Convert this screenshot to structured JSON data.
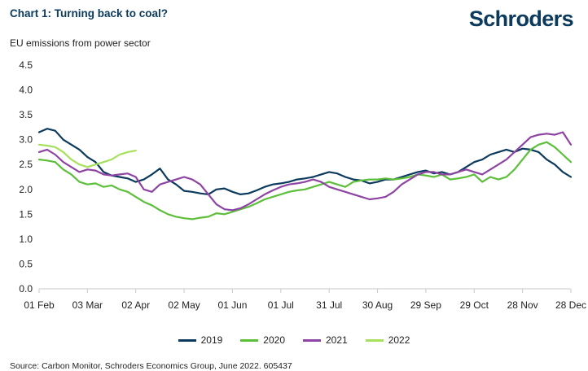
{
  "header": {
    "title": "Chart 1: Turning back to coal?",
    "logo": "Schroders",
    "subtitle": "EU emissions from power sector"
  },
  "source": "Source: Carbon Monitor, Schroders Economics Group, June 2022. 605437",
  "colors": {
    "2019": "#0b3a5d",
    "2020": "#5cbf3a",
    "2021": "#8e44a3",
    "2022": "#a6e05c"
  },
  "chart_data": {
    "type": "line",
    "title": "Chart 1: Turning back to coal?",
    "ylabel": "EU emissions from power sector",
    "xlabel": "",
    "ylim": [
      0,
      4.5
    ],
    "xlim": [
      0,
      330
    ],
    "yticks": [
      {
        "value": 0,
        "label": "0.0"
      },
      {
        "value": 0.5,
        "label": "0.5"
      },
      {
        "value": 1,
        "label": "1.0"
      },
      {
        "value": 1.5,
        "label": "1.5"
      },
      {
        "value": 2,
        "label": "2.0"
      },
      {
        "value": 2.5,
        "label": "2.5"
      },
      {
        "value": 3,
        "label": "3.0"
      },
      {
        "value": 3.5,
        "label": "3.5"
      },
      {
        "value": 4,
        "label": "4.0"
      },
      {
        "value": 4.5,
        "label": "4.5"
      }
    ],
    "xticks": [
      {
        "value": 0,
        "label": "01 Feb"
      },
      {
        "value": 30,
        "label": "03 Mar"
      },
      {
        "value": 60,
        "label": "02 Apr"
      },
      {
        "value": 90,
        "label": "02 May"
      },
      {
        "value": 120,
        "label": "01 Jun"
      },
      {
        "value": 150,
        "label": "01 Jul"
      },
      {
        "value": 180,
        "label": "31 Jul"
      },
      {
        "value": 210,
        "label": "30 Aug"
      },
      {
        "value": 240,
        "label": "29 Sep"
      },
      {
        "value": 270,
        "label": "29 Oct"
      },
      {
        "value": 300,
        "label": "28 Nov"
      },
      {
        "value": 330,
        "label": "28 Dec"
      }
    ],
    "x_unit": "days since 01 Feb",
    "series": [
      {
        "name": "2019",
        "x": [
          0,
          5,
          10,
          15,
          20,
          25,
          30,
          35,
          40,
          45,
          50,
          55,
          60,
          65,
          70,
          75,
          80,
          85,
          90,
          95,
          100,
          105,
          110,
          115,
          120,
          125,
          130,
          135,
          140,
          145,
          150,
          155,
          160,
          165,
          170,
          175,
          180,
          185,
          190,
          195,
          200,
          205,
          210,
          215,
          220,
          225,
          230,
          235,
          240,
          245,
          250,
          255,
          260,
          265,
          270,
          275,
          280,
          285,
          290,
          295,
          300,
          305,
          310,
          315,
          320,
          325,
          330
        ],
        "y": [
          3.15,
          3.22,
          3.18,
          3.0,
          2.9,
          2.8,
          2.65,
          2.55,
          2.35,
          2.28,
          2.25,
          2.22,
          2.15,
          2.2,
          2.3,
          2.42,
          2.2,
          2.1,
          1.97,
          1.95,
          1.92,
          1.9,
          2.0,
          2.02,
          1.95,
          1.9,
          1.92,
          1.98,
          2.05,
          2.1,
          2.12,
          2.15,
          2.2,
          2.22,
          2.25,
          2.3,
          2.35,
          2.32,
          2.25,
          2.2,
          2.18,
          2.12,
          2.15,
          2.2,
          2.2,
          2.25,
          2.3,
          2.35,
          2.38,
          2.32,
          2.35,
          2.3,
          2.35,
          2.45,
          2.55,
          2.6,
          2.7,
          2.75,
          2.8,
          2.75,
          2.82,
          2.8,
          2.75,
          2.6,
          2.5,
          2.35,
          2.25
        ]
      },
      {
        "name": "2020",
        "x": [
          0,
          5,
          10,
          15,
          20,
          25,
          30,
          35,
          40,
          45,
          50,
          55,
          60,
          65,
          70,
          75,
          80,
          85,
          90,
          95,
          100,
          105,
          110,
          115,
          120,
          125,
          130,
          135,
          140,
          145,
          150,
          155,
          160,
          165,
          170,
          175,
          180,
          185,
          190,
          195,
          200,
          205,
          210,
          215,
          220,
          225,
          230,
          235,
          240,
          245,
          250,
          255,
          260,
          265,
          270,
          275,
          280,
          285,
          290,
          295,
          300,
          305,
          310,
          315,
          320,
          325,
          330
        ],
        "y": [
          2.6,
          2.58,
          2.55,
          2.4,
          2.3,
          2.15,
          2.1,
          2.12,
          2.05,
          2.08,
          2.0,
          1.95,
          1.85,
          1.75,
          1.68,
          1.58,
          1.5,
          1.45,
          1.42,
          1.4,
          1.43,
          1.45,
          1.52,
          1.5,
          1.55,
          1.6,
          1.65,
          1.72,
          1.8,
          1.85,
          1.9,
          1.95,
          1.98,
          2.0,
          2.05,
          2.1,
          2.15,
          2.1,
          2.05,
          2.15,
          2.18,
          2.2,
          2.2,
          2.22,
          2.2,
          2.22,
          2.25,
          2.3,
          2.28,
          2.25,
          2.3,
          2.2,
          2.22,
          2.25,
          2.3,
          2.15,
          2.25,
          2.2,
          2.25,
          2.4,
          2.6,
          2.8,
          2.9,
          2.95,
          2.85,
          2.7,
          2.55
        ]
      },
      {
        "name": "2021",
        "x": [
          0,
          5,
          10,
          15,
          20,
          25,
          30,
          35,
          40,
          45,
          50,
          55,
          60,
          65,
          70,
          75,
          80,
          85,
          90,
          95,
          100,
          105,
          110,
          115,
          120,
          125,
          130,
          135,
          140,
          145,
          150,
          155,
          160,
          165,
          170,
          175,
          180,
          185,
          190,
          195,
          200,
          205,
          210,
          215,
          220,
          225,
          230,
          235,
          240,
          245,
          250,
          255,
          260,
          265,
          270,
          275,
          280,
          285,
          290,
          295,
          300,
          305,
          310,
          315,
          320,
          325,
          330
        ],
        "y": [
          2.75,
          2.8,
          2.7,
          2.55,
          2.45,
          2.35,
          2.4,
          2.38,
          2.3,
          2.28,
          2.3,
          2.32,
          2.25,
          2.0,
          1.95,
          2.1,
          2.15,
          2.2,
          2.25,
          2.2,
          2.1,
          1.9,
          1.7,
          1.6,
          1.58,
          1.62,
          1.7,
          1.8,
          1.9,
          1.98,
          2.05,
          2.1,
          2.12,
          2.15,
          2.2,
          2.15,
          2.05,
          2.0,
          1.95,
          1.9,
          1.85,
          1.8,
          1.82,
          1.85,
          1.95,
          2.1,
          2.2,
          2.3,
          2.35,
          2.35,
          2.3,
          2.3,
          2.35,
          2.4,
          2.35,
          2.3,
          2.4,
          2.5,
          2.6,
          2.75,
          2.9,
          3.05,
          3.1,
          3.12,
          3.1,
          3.15,
          2.9
        ]
      },
      {
        "name": "2022",
        "x": [
          0,
          5,
          10,
          15,
          20,
          25,
          30,
          35,
          40,
          45,
          50,
          55,
          60
        ],
        "y": [
          2.9,
          2.88,
          2.85,
          2.75,
          2.6,
          2.5,
          2.45,
          2.5,
          2.55,
          2.6,
          2.7,
          2.75,
          2.78
        ]
      }
    ],
    "legend": [
      "2019",
      "2020",
      "2021",
      "2022"
    ],
    "legend_position": "bottom",
    "grid": false
  }
}
